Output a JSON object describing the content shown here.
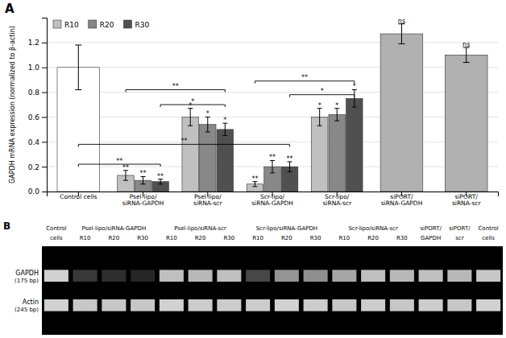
{
  "chart_data": [
    {
      "type": "bar",
      "title": "A",
      "categories": [
        "Control cells",
        "Psel-lipo/\nsiRNA-GAPDH",
        "Psel-lipo/\nsiRNA-scr",
        "Scr-lipo/\nsiRNA-GAPDH",
        "Scr-lipo/\nsiRNA-scr",
        "siPORT/\nsiRNA-GAPDH",
        "siPORT/\nsiRNA-scr"
      ],
      "series": [
        {
          "name": "R10",
          "color": "#c0c0c0",
          "colors": [
            "#ffffff",
            "#c0c0c0",
            "#c0c0c0",
            "#c0c0c0",
            "#c0c0c0",
            "#b0b0b0",
            "#b0b0b0"
          ],
          "values": [
            1.0,
            0.13,
            0.6,
            0.06,
            0.6,
            1.27,
            1.1
          ],
          "errors": [
            0.18,
            0.04,
            0.07,
            0.02,
            0.07,
            0.08,
            0.06
          ]
        },
        {
          "name": "R20",
          "color": "#888888",
          "values": [
            null,
            0.09,
            0.54,
            0.2,
            0.62,
            null,
            null
          ],
          "errors": [
            null,
            0.03,
            0.06,
            0.05,
            0.05,
            null,
            null
          ]
        },
        {
          "name": "R30",
          "color": "#505050",
          "values": [
            null,
            0.08,
            0.5,
            0.2,
            0.75,
            null,
            null
          ],
          "errors": [
            null,
            0.02,
            0.05,
            0.04,
            0.07,
            null,
            null
          ]
        }
      ],
      "ylabel": "GAPDH mRNA expression (normalized to β-actin)",
      "ylim": [
        0,
        1.4
      ],
      "yticks": [
        {
          "value": 0,
          "label": "0.0"
        },
        0.2,
        0.4,
        0.6,
        0.8,
        {
          "value": 1.0,
          "label": "1.0"
        },
        1.2
      ],
      "grid": true,
      "legend": "upper left",
      "annotations": [
        {
          "text": "**",
          "category": 1,
          "series": 0
        },
        {
          "text": "**",
          "category": 1,
          "series": 1
        },
        {
          "text": "**",
          "category": 1,
          "series": 2
        },
        {
          "text": "**",
          "category": 3,
          "series": 0
        },
        {
          "text": "**",
          "category": 3,
          "series": 1
        },
        {
          "text": "**",
          "category": 3,
          "series": 2
        },
        {
          "text": "*",
          "category": 2,
          "series": 0
        },
        {
          "text": "*",
          "category": 2,
          "series": 1
        },
        {
          "text": "*",
          "category": 2,
          "series": 2
        },
        {
          "text": "*",
          "category": 4,
          "series": 0
        },
        {
          "text": "*",
          "category": 4,
          "series": 1
        },
        {
          "text": "*",
          "category": 4,
          "series": 2
        },
        {
          "text": "ns",
          "category": 5,
          "series": 0
        },
        {
          "text": "ns",
          "category": 6,
          "series": 0
        },
        {
          "text": "**",
          "y": 0.22,
          "from": {
            "category": 0,
            "series": 0
          },
          "to": {
            "category": 1,
            "series": 2
          }
        },
        {
          "text": "**",
          "y": 0.38,
          "from": {
            "category": 0,
            "series": 0
          },
          "to": {
            "category": 3,
            "series": 2
          }
        },
        {
          "text": "**",
          "y": 0.82,
          "from": {
            "category": 1,
            "series": 0
          },
          "to": {
            "category": 2,
            "series": 2
          }
        },
        {
          "text": "*",
          "y": 0.7,
          "from": {
            "category": 1,
            "series": 2
          },
          "to": {
            "category": 2,
            "series": 2
          }
        },
        {
          "text": "**",
          "y": 0.89,
          "from": {
            "category": 3,
            "series": 0
          },
          "to": {
            "category": 4,
            "series": 2
          }
        },
        {
          "text": "*",
          "y": 0.78,
          "from": {
            "category": 3,
            "series": 2
          },
          "to": {
            "category": 4,
            "series": 2
          }
        }
      ]
    },
    {
      "type": "heatmap",
      "title": "B",
      "row_labels": [
        [
          "GAPDH",
          "(175 bp)"
        ],
        [
          "Actin",
          "(245 bp)"
        ]
      ],
      "column_labels": [
        "Control\ncells",
        "R10",
        "R20",
        "R30",
        "R10",
        "R20",
        "R30",
        "R10",
        "R20",
        "R30",
        "R10",
        "R20",
        "R30",
        "siPORT/\nGAPDH",
        "siPORT/\nscr",
        "Control\ncells"
      ],
      "column_groups": [
        {
          "text": "Psel-lipo/siRNA-GAPDH",
          "from": 1,
          "to": 3
        },
        {
          "text": "Psel-lipo/siRNA-scr",
          "from": 4,
          "to": 6
        },
        {
          "text": "Scr-lipo/siRNA-GAPDH",
          "from": 7,
          "to": 9
        },
        {
          "text": "Scr-lipo/siRNA-scr",
          "from": 10,
          "to": 12
        }
      ],
      "values": [
        [
          0.82,
          0.22,
          0.18,
          0.15,
          0.75,
          0.72,
          0.75,
          0.28,
          0.58,
          0.56,
          0.65,
          0.75,
          0.72,
          0.75,
          0.72,
          0.78
        ],
        [
          0.82,
          0.78,
          0.78,
          0.78,
          0.82,
          0.8,
          0.8,
          0.8,
          0.82,
          0.8,
          0.78,
          0.8,
          0.78,
          0.8,
          0.78,
          0.82
        ]
      ],
      "zlim": [
        0,
        1
      ]
    }
  ]
}
